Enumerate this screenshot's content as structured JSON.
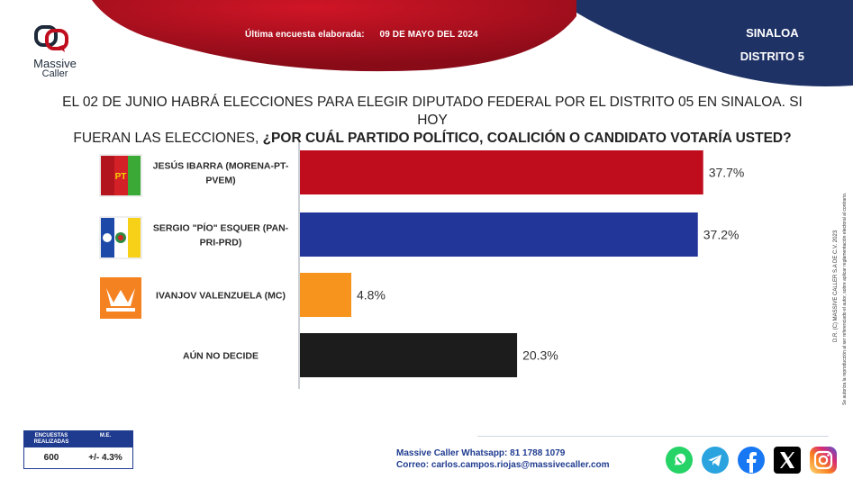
{
  "header": {
    "brand": "Massive",
    "brand_sub": "Caller",
    "survey_label": "Última encuesta elaborada:",
    "survey_date": "09 DE MAYO DEL 2024",
    "region_line1": "SINALOA",
    "region_line2": "DISTRITO 5"
  },
  "question": {
    "line1": "EL 02 DE JUNIO HABRÁ ELECCIONES PARA ELEGIR DIPUTADO FEDERAL POR EL DISTRITO 05 EN SINALOA. SI HOY",
    "line2_normal": "FUERAN LAS ELECCIONES, ",
    "line2_bold": "¿POR CUÁL PARTIDO POLÍTICO, COALICIÓN O CANDIDATO VOTARÍA USTED?"
  },
  "chart_data": {
    "type": "bar",
    "orientation": "horizontal",
    "categories": [
      "JESÚS IBARRA (MORENA-PT-PVEM)",
      "SERGIO \"PÍO\" ESQUER (PAN-PRI-PRD)",
      "IVANJOV VALENZUELA (MC)",
      "AÚN NO DECIDE"
    ],
    "label_lines": [
      [
        "JESÚS IBARRA (MORENA-PT-",
        "PVEM)"
      ],
      [
        "SERGIO \"PÍO\" ESQUER (PAN-",
        "PRI-PRD)"
      ],
      [
        "IVANJOV VALENZUELA (MC)"
      ],
      [
        "AÚN NO DECIDE"
      ]
    ],
    "values": [
      37.7,
      37.2,
      4.8,
      20.3
    ],
    "value_labels": [
      "37.7%",
      "37.2%",
      "4.8%",
      "20.3%"
    ],
    "colors": [
      "#c00d1e",
      "#22369a",
      "#f7941d",
      "#1c1c1c"
    ],
    "xlim": [
      0,
      40
    ],
    "grid": false,
    "legend": "none"
  },
  "footer": {
    "table_h1": "ENCUESTAS REALIZADAS",
    "table_h2": "M.E.",
    "table_v1": "600",
    "table_v2": "+/- 4.3%",
    "contact_line1": "Massive Caller Whatsapp: 81 1788 1079",
    "contact_line2": "Correo: carlos.campos.riojas@massivecaller.com",
    "side_line1": "D.R. (C) MASSIVE CALLER S.A DE C.V. 2023",
    "side_line2": "Se autoriza la reproducción al ser referenciado el autor, sobre aplicar reglamentación electoral al contrario."
  },
  "colors": {
    "header_red": "#b00f1e",
    "header_navy": "#1f3266",
    "accent_blue": "#1f3b8f"
  }
}
